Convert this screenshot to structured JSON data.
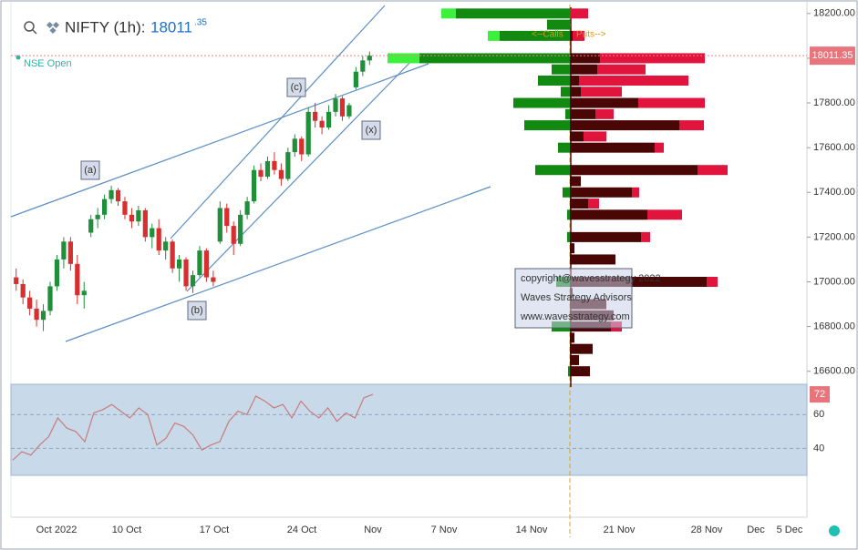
{
  "header": {
    "symbol": "NIFTY (1h):",
    "price_main": "18011",
    "price_decimals": ".35",
    "exchange_status": "NSE Open"
  },
  "chart_data": [
    {
      "type": "candlestick",
      "ylim": [
        16550,
        18240
      ],
      "yticks": [
        {
          "value": 16600,
          "label": "16600.00"
        },
        {
          "value": 16800,
          "label": "16800.00"
        },
        {
          "value": 17000,
          "label": "17000.00"
        },
        {
          "value": 17200,
          "label": "17200.00"
        },
        {
          "value": 17400,
          "label": "17400.00"
        },
        {
          "value": 17600,
          "label": "17600.00"
        },
        {
          "value": 17800,
          "label": "17800.00"
        },
        {
          "value": 18000,
          "label": "18000.00"
        },
        {
          "value": 18200,
          "label": "18200.00"
        }
      ],
      "last_price": {
        "value": 18011.35,
        "label": "18011.35"
      },
      "up_color": "#1f8f3a",
      "down_color": "#d62f2f",
      "x_labels": [
        "Oct 2022",
        "10 Oct",
        "17 Oct",
        "24 Oct",
        "Nov",
        "7 Nov",
        "14 Nov",
        "21 Nov",
        "28 Nov",
        "Dec",
        "5 Dec"
      ],
      "annotations": [
        "(a)",
        "(b)",
        "(c)",
        "(x)"
      ],
      "watermark": [
        "copyright@wavesstrategy 2022",
        "Waves Strategy Advisors",
        "www.wavesstrategy.com"
      ],
      "candles": {
        "open": [
          17020,
          16990,
          16930,
          16880,
          16830,
          16870,
          16980,
          17100,
          17180,
          17080,
          16940,
          17220,
          17280,
          17300,
          17370,
          17410,
          17360,
          17300,
          17270,
          17320,
          17200,
          17240,
          17140,
          17180,
          17060,
          17100,
          16980,
          17030,
          17140,
          17020,
          17180,
          17330,
          17250,
          17170,
          17300,
          17360,
          17500,
          17470,
          17540,
          17500,
          17460,
          17580,
          17640,
          17570,
          17760,
          17720,
          17690,
          17760,
          17820,
          17740,
          17870,
          17940,
          17990
        ],
        "high": [
          17060,
          17010,
          16960,
          16920,
          16900,
          17000,
          17120,
          17200,
          17200,
          17120,
          17000,
          17300,
          17330,
          17390,
          17430,
          17420,
          17380,
          17330,
          17340,
          17330,
          17260,
          17280,
          17200,
          17190,
          17120,
          17110,
          17050,
          17160,
          17150,
          17050,
          17360,
          17350,
          17270,
          17320,
          17380,
          17520,
          17530,
          17560,
          17580,
          17530,
          17600,
          17660,
          17650,
          17780,
          17800,
          17740,
          17790,
          17840,
          17830,
          17800,
          17960,
          18010,
          18030
        ],
        "low": [
          16960,
          16900,
          16850,
          16800,
          16780,
          16850,
          16960,
          17060,
          17050,
          16900,
          16880,
          17200,
          17240,
          17280,
          17350,
          17340,
          17280,
          17240,
          17250,
          17180,
          17150,
          17120,
          17100,
          17040,
          17000,
          16960,
          16950,
          17020,
          17000,
          16980,
          17170,
          17220,
          17120,
          17160,
          17280,
          17350,
          17450,
          17460,
          17480,
          17430,
          17450,
          17560,
          17540,
          17560,
          17690,
          17660,
          17680,
          17740,
          17720,
          17730,
          17860,
          17920,
          17970
        ],
        "close": [
          16990,
          16930,
          16880,
          16830,
          16870,
          16980,
          17100,
          17180,
          17080,
          16940,
          16960,
          17280,
          17300,
          17370,
          17410,
          17360,
          17300,
          17270,
          17320,
          17200,
          17240,
          17140,
          17180,
          17060,
          17100,
          16980,
          17030,
          17140,
          17020,
          17000,
          17330,
          17250,
          17170,
          17300,
          17360,
          17500,
          17470,
          17540,
          17500,
          17460,
          17580,
          17640,
          17570,
          17760,
          17720,
          17690,
          17760,
          17820,
          17740,
          17790,
          17940,
          17990,
          18011.35
        ]
      }
    },
    {
      "type": "bar",
      "orientation": "horizontal",
      "y": [
        16600,
        16650,
        16700,
        16750,
        16800,
        16850,
        16900,
        16950,
        17000,
        17050,
        17100,
        17150,
        17200,
        17250,
        17300,
        17350,
        17400,
        17450,
        17500,
        17550,
        17600,
        17650,
        17700,
        17750,
        17800,
        17850,
        17900,
        17950,
        18000,
        18050,
        18100,
        18150,
        18200
      ],
      "series": [
        {
          "name": "<--Calls",
          "color": "#128a12",
          "side": "left",
          "values": [
            2,
            0,
            0,
            0,
            20,
            0,
            0,
            0,
            15,
            0,
            0,
            0,
            3,
            0,
            3,
            0,
            8,
            0,
            38,
            0,
            13,
            0,
            50,
            5,
            62,
            10,
            35,
            20,
            165,
            0,
            77,
            25,
            125
          ]
        },
        {
          "color": "#3cf03c",
          "side": "left",
          "values": [
            0,
            0,
            0,
            0,
            0,
            0,
            0,
            0,
            0,
            0,
            0,
            0,
            0,
            0,
            0,
            0,
            0,
            0,
            0,
            0,
            0,
            0,
            0,
            0,
            0,
            0,
            0,
            0,
            35,
            0,
            13,
            0,
            16
          ]
        },
        {
          "name": "Puts-->",
          "color": "#4a0505",
          "side": "right",
          "values": [
            22,
            10,
            25,
            5,
            45,
            48,
            40,
            3,
            150,
            0,
            50,
            5,
            78,
            0,
            85,
            20,
            68,
            12,
            140,
            0,
            93,
            15,
            120,
            28,
            75,
            12,
            10,
            30,
            33,
            0,
            3,
            0,
            0
          ]
        },
        {
          "color": "#e0143c",
          "side": "right",
          "values": [
            0,
            0,
            0,
            0,
            12,
            0,
            0,
            0,
            12,
            0,
            0,
            0,
            10,
            0,
            38,
            12,
            8,
            0,
            33,
            0,
            10,
            25,
            27,
            20,
            73,
            45,
            120,
            53,
            115,
            0,
            13,
            0,
            20
          ]
        }
      ]
    },
    {
      "type": "line",
      "ylim": [
        24,
        78
      ],
      "yticks": [
        40,
        60
      ],
      "series": [
        {
          "color": "#c97b7b",
          "values": [
            33,
            38,
            36,
            42,
            47,
            58,
            52,
            50,
            44,
            61,
            63,
            66,
            62,
            58,
            64,
            60,
            42,
            46,
            55,
            53,
            48,
            39,
            42,
            44,
            56,
            62,
            60,
            71,
            68,
            64,
            66,
            58,
            68,
            62,
            58,
            64,
            56,
            61,
            58,
            70,
            72
          ]
        }
      ]
    }
  ]
}
